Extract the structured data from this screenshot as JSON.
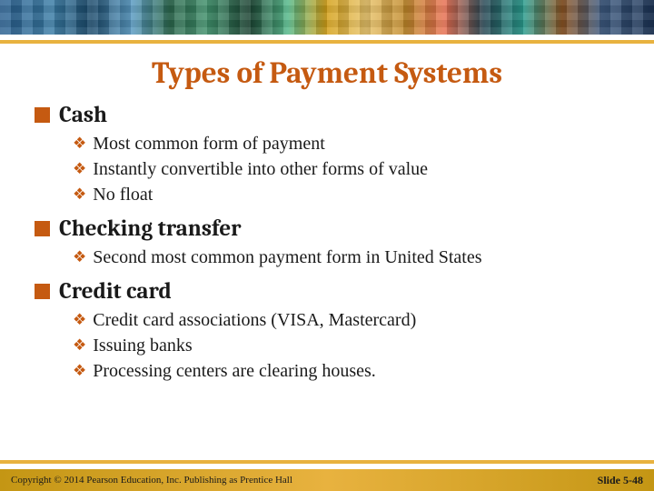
{
  "colors": {
    "accent": "#c55a11",
    "underline": "#e8b23f",
    "text": "#1a1a1a",
    "footer_bg": "#d4a017"
  },
  "title": "Types of Payment Systems",
  "sections": [
    {
      "heading": "Cash",
      "items": [
        "Most common form of payment",
        "Instantly convertible into other forms of value",
        "No float"
      ]
    },
    {
      "heading": "Checking transfer",
      "items": [
        "Second most common payment form in United States"
      ]
    },
    {
      "heading": "Credit card",
      "items": [
        "Credit card associations (VISA, Mastercard)",
        "Issuing banks",
        "Processing centers are clearing houses."
      ]
    }
  ],
  "footer": {
    "copyright": "Copyright © 2014 Pearson Education, Inc. Publishing as Prentice Hall",
    "slide": "Slide 5-48"
  }
}
